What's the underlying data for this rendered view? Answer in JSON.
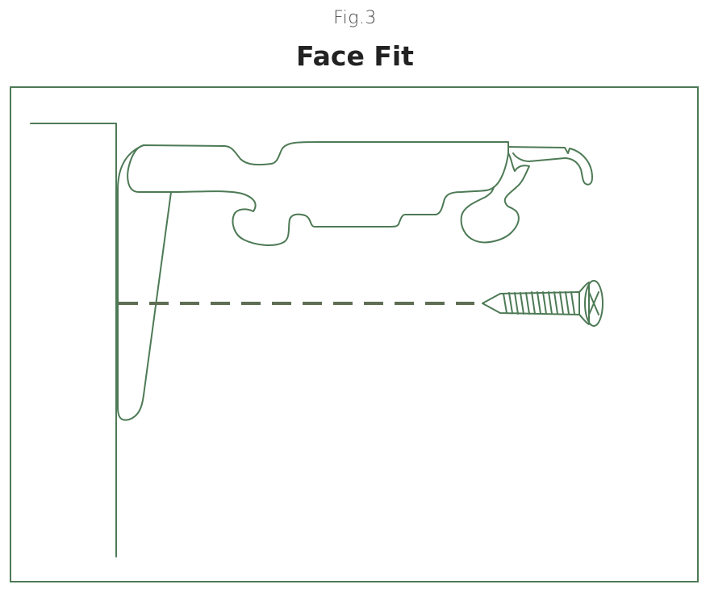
{
  "figure": {
    "label": "Fig.3",
    "title": "Face Fit"
  },
  "colors": {
    "line": "#4d7a55",
    "dashed_guide": "#5e6e54",
    "title_text": "#222222",
    "label_text": "#4a4a4a"
  },
  "parts": {
    "wall": "wall-surface",
    "bracket": "face-fit-bracket",
    "screw": "screw",
    "guide": "screw-alignment-guide"
  }
}
